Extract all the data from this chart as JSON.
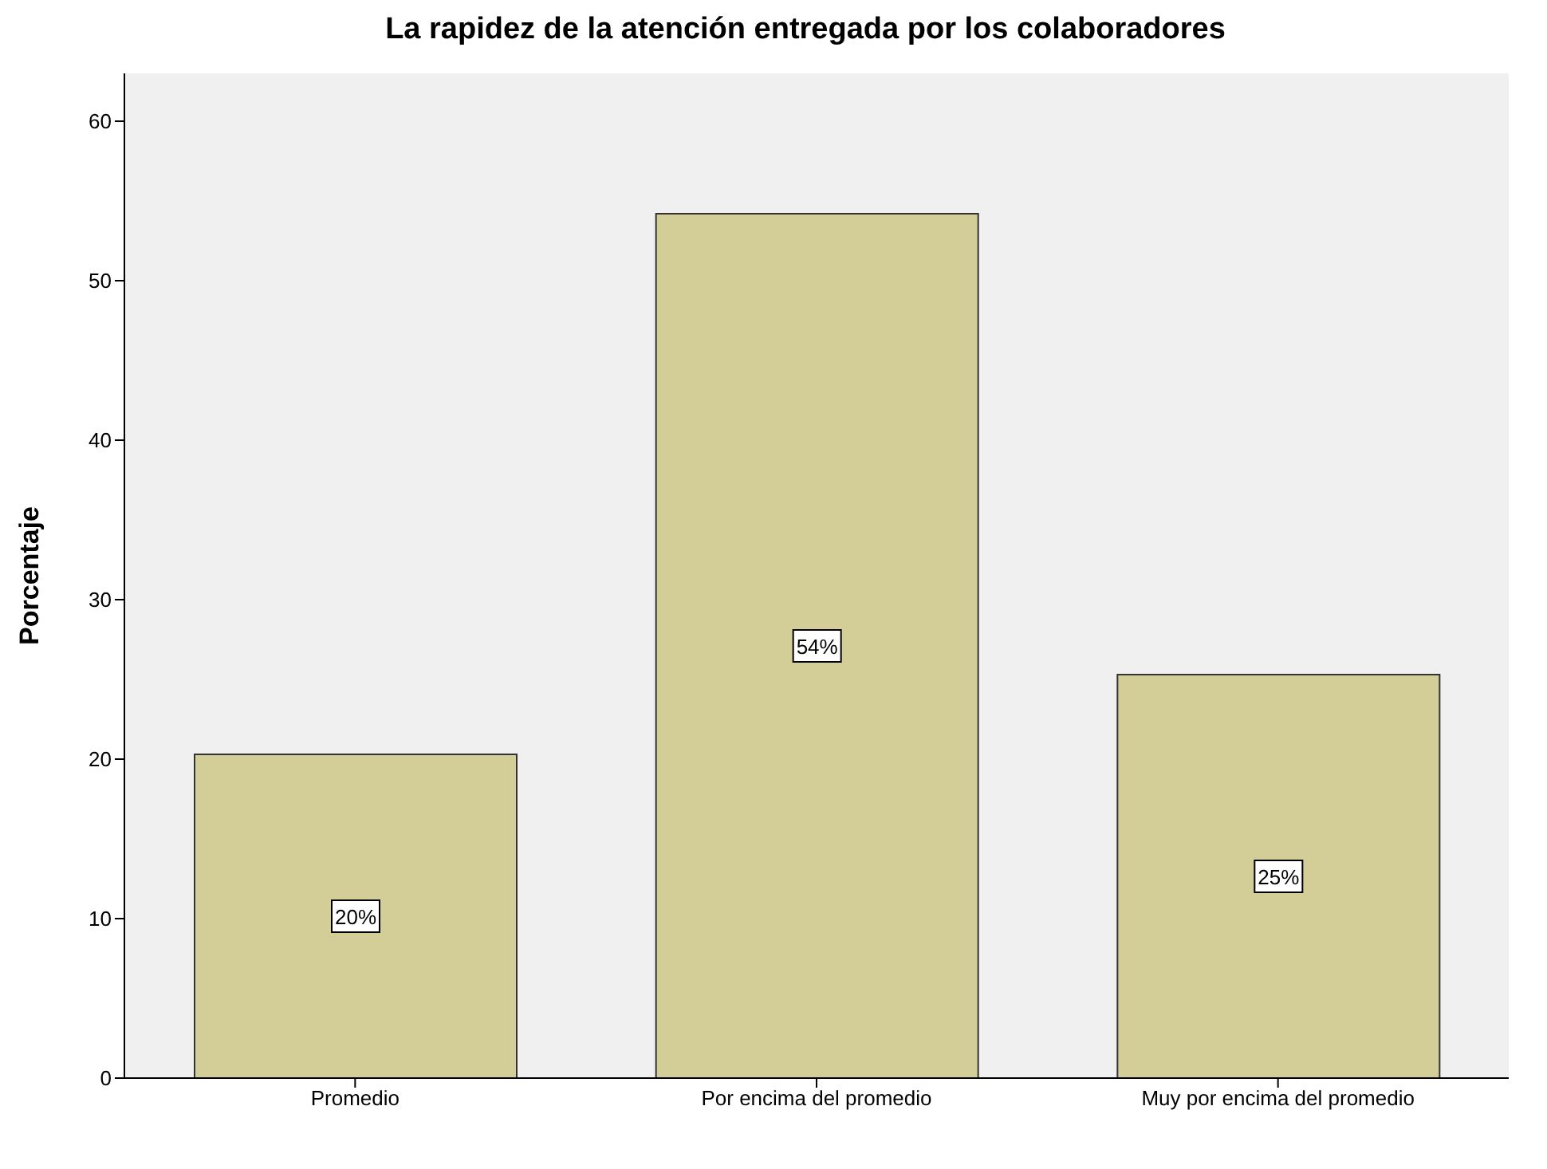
{
  "chart_data": {
    "type": "bar",
    "title": "La rapidez de la atención entregada por los colaboradores",
    "ylabel": "Porcentaje",
    "categories": [
      "Promedio",
      "Por encima del promedio",
      "Muy por encima del promedio"
    ],
    "values": [
      20.3,
      54.2,
      25.3
    ],
    "value_labels": [
      "20%",
      "54%",
      "25%"
    ],
    "color": "#d3ce97",
    "ylim": [
      0,
      63
    ],
    "yticks": [
      0,
      10,
      20,
      30,
      40,
      50,
      60
    ],
    "grid": false
  }
}
